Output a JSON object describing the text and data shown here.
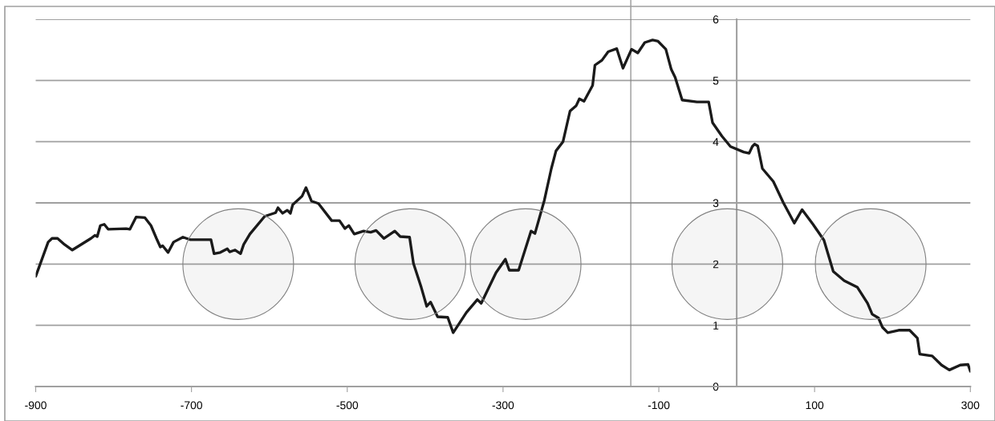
{
  "chart_data": {
    "type": "line",
    "xlim": [
      -900,
      300
    ],
    "ylim": [
      0,
      6
    ],
    "xticks": [
      -900,
      -700,
      -500,
      -300,
      -100,
      100,
      300
    ],
    "yticks": [
      0,
      1,
      2,
      3,
      4,
      5,
      6
    ],
    "grid": "y",
    "legend": false,
    "line_style": "solid",
    "ref_lines": [
      {
        "axis": "x",
        "value": -136,
        "color": "#808080"
      }
    ],
    "series": [
      {
        "marker": "none",
        "color": "#1a1a1a",
        "x": [
          -900,
          -894,
          -884,
          -879,
          -872,
          -863,
          -853,
          -829,
          -824,
          -821,
          -817,
          -812,
          -807,
          -784,
          -779,
          -771,
          -760,
          -752,
          -745,
          -740,
          -737,
          -730,
          -723,
          -711,
          -702,
          -675,
          -671,
          -663,
          -654,
          -651,
          -644,
          -637,
          -633,
          -625,
          -606,
          -592,
          -589,
          -583,
          -577,
          -573,
          -570,
          -558,
          -553,
          -546,
          -537,
          -520,
          -510,
          -503,
          -498,
          -491,
          -479,
          -470,
          -463,
          -453,
          -439,
          -432,
          -420,
          -415,
          -405,
          -398,
          -393,
          -384,
          -371,
          -364,
          -347,
          -333,
          -328,
          -309,
          -297,
          -292,
          -280,
          -264,
          -259,
          -247,
          -238,
          -232,
          -223,
          -214,
          -206,
          -202,
          -196,
          -185,
          -182,
          -173,
          -165,
          -154,
          -146,
          -135,
          -127,
          -118,
          -108,
          -101,
          -91,
          -84,
          -79,
          -70,
          -51,
          -36,
          -31,
          -19,
          -8,
          9,
          16,
          20,
          23,
          27,
          33,
          47,
          60,
          74,
          84,
          98,
          112,
          124,
          138,
          155,
          168,
          174,
          182,
          187,
          194,
          208,
          222,
          232,
          235,
          251,
          263,
          273,
          287,
          297,
          300
        ],
        "values": [
          1.8,
          2.01,
          2.36,
          2.42,
          2.42,
          2.32,
          2.23,
          2.42,
          2.47,
          2.45,
          2.63,
          2.65,
          2.57,
          2.58,
          2.57,
          2.77,
          2.76,
          2.63,
          2.42,
          2.28,
          2.3,
          2.19,
          2.36,
          2.44,
          2.4,
          2.4,
          2.17,
          2.19,
          2.25,
          2.2,
          2.23,
          2.17,
          2.32,
          2.49,
          2.78,
          2.84,
          2.92,
          2.83,
          2.88,
          2.83,
          2.97,
          3.11,
          3.25,
          3.03,
          2.99,
          2.71,
          2.71,
          2.58,
          2.63,
          2.49,
          2.54,
          2.52,
          2.55,
          2.42,
          2.54,
          2.45,
          2.44,
          2.01,
          1.62,
          1.31,
          1.38,
          1.14,
          1.13,
          0.88,
          1.21,
          1.42,
          1.36,
          1.86,
          2.08,
          1.9,
          1.9,
          2.54,
          2.5,
          3.04,
          3.56,
          3.85,
          4.0,
          4.5,
          4.59,
          4.7,
          4.66,
          4.92,
          5.25,
          5.33,
          5.47,
          5.52,
          5.2,
          5.51,
          5.45,
          5.62,
          5.66,
          5.64,
          5.51,
          5.18,
          5.05,
          4.68,
          4.65,
          4.65,
          4.31,
          4.09,
          3.92,
          3.83,
          3.81,
          3.92,
          3.96,
          3.93,
          3.56,
          3.35,
          3.0,
          2.67,
          2.89,
          2.65,
          2.39,
          1.88,
          1.73,
          1.62,
          1.36,
          1.18,
          1.12,
          0.97,
          0.88,
          0.92,
          0.92,
          0.79,
          0.53,
          0.5,
          0.35,
          0.27,
          0.35,
          0.36,
          0.25
        ]
      },
      {
        "type": "bubble",
        "marker": "circle",
        "color": "#808080",
        "x": [
          -640,
          -419,
          -271,
          -12,
          172
        ],
        "values": [
          2,
          2,
          2,
          2,
          2
        ],
        "sizes": [
          1,
          1,
          1,
          1,
          1
        ]
      }
    ]
  }
}
